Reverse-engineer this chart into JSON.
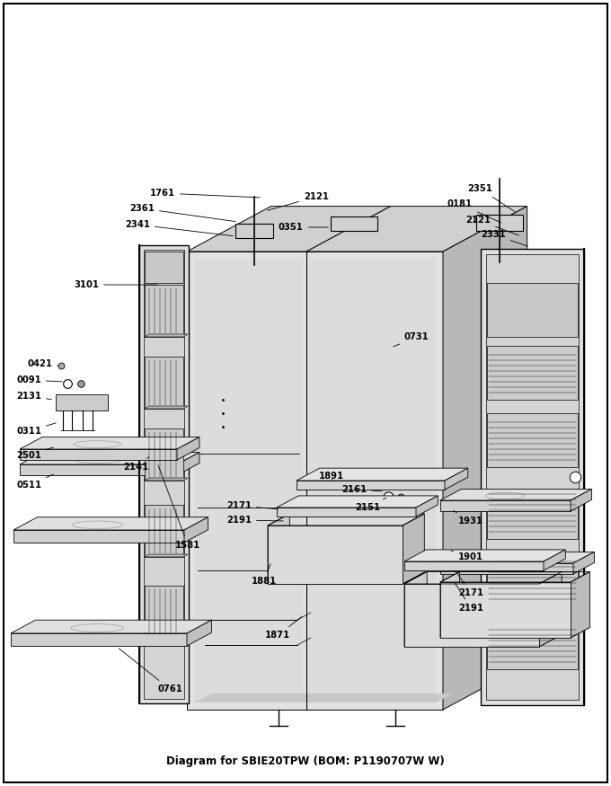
{
  "title": "SBIE20TPW",
  "subtitle": "BOM: P1190707W W",
  "bg": "#ffffff",
  "fig_width": 6.8,
  "fig_height": 8.75,
  "dpi": 100,
  "ann_fontsize": 7.2,
  "title_fontsize": 8.5,
  "lw": 0.7,
  "face_front": "#e8e8e8",
  "face_top": "#d4d4d4",
  "face_right": "#c0c0c0",
  "face_dark": "#b0b0b0",
  "face_mid": "#d8d8d8",
  "face_light": "#f0f0f0"
}
